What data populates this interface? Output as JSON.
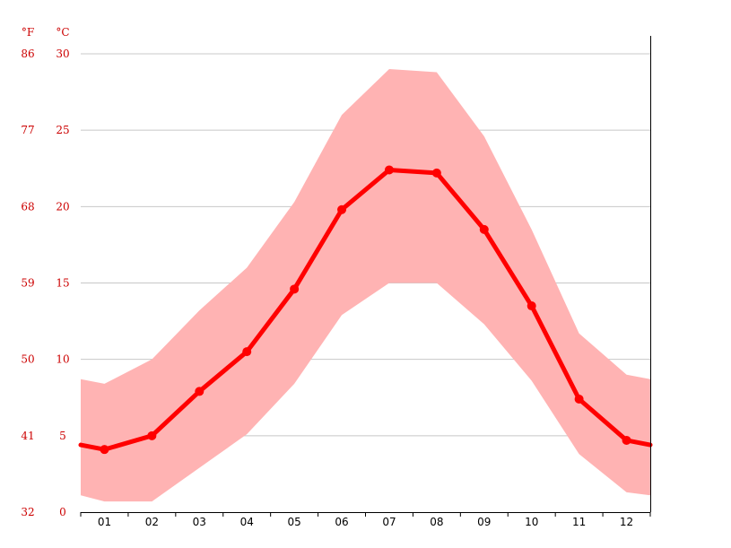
{
  "chart_data": {
    "type": "line",
    "unit_labels": {
      "fahrenheit": "°F",
      "celsius": "°C"
    },
    "categories": [
      "01",
      "02",
      "03",
      "04",
      "05",
      "06",
      "07",
      "08",
      "09",
      "10",
      "11",
      "12"
    ],
    "y_ticks_celsius": [
      "0",
      "5",
      "10",
      "15",
      "20",
      "25",
      "30"
    ],
    "y_ticks_fahrenheit": [
      "32",
      "41",
      "50",
      "59",
      "68",
      "77",
      "86"
    ],
    "ylim": [
      0,
      30
    ],
    "grid": true,
    "colors": {
      "line": "#ff0000",
      "band": "#ffb3b3",
      "axis_label": "#cc0000",
      "grid": "#c8c8c8",
      "axis": "#000000"
    },
    "series": [
      {
        "values": [
          4.1,
          5.0,
          7.9,
          10.5,
          14.6,
          19.8,
          22.4,
          22.2,
          18.5,
          13.5,
          7.4,
          4.7
        ]
      },
      {
        "values": [
          8.4,
          10.0,
          13.2,
          16.0,
          20.3,
          26.0,
          29.0,
          28.8,
          24.6,
          18.5,
          11.7,
          9.0
        ]
      },
      {
        "values": [
          0.7,
          0.7,
          2.9,
          5.1,
          8.4,
          12.9,
          15.0,
          15.0,
          12.3,
          8.6,
          3.8,
          1.3
        ]
      }
    ],
    "edge_values": {
      "mean": [
        4.4,
        4.4
      ],
      "max": [
        8.7,
        8.7
      ],
      "min": [
        1.1,
        1.1
      ]
    }
  }
}
